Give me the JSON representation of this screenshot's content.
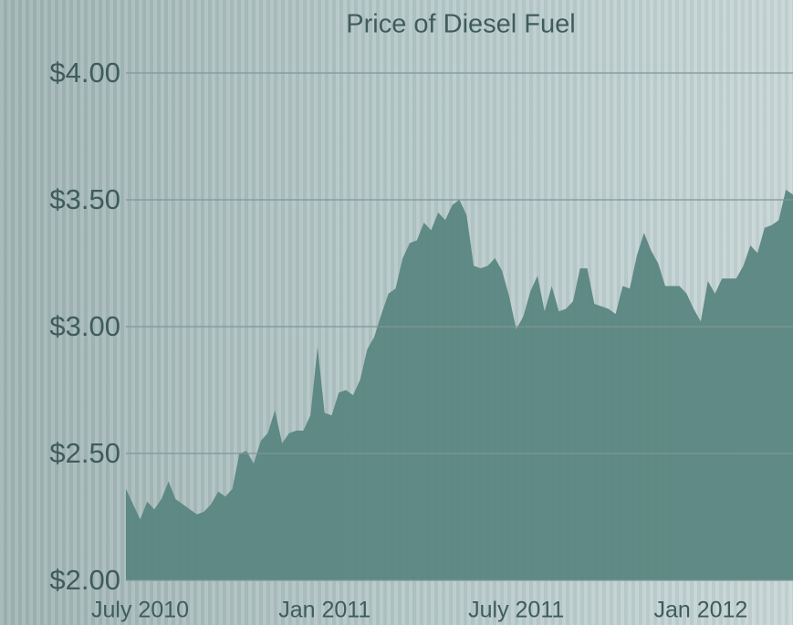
{
  "chart_data": {
    "type": "area",
    "title": "Price of Diesel Fuel",
    "categories": [
      null,
      null,
      "July 2010",
      null,
      null,
      null,
      null,
      null,
      null,
      null,
      null,
      null,
      null,
      null,
      null,
      null,
      null,
      null,
      null,
      null,
      null,
      null,
      null,
      null,
      null,
      null,
      null,
      null,
      "Jan 2011",
      null,
      null,
      null,
      null,
      null,
      null,
      null,
      null,
      null,
      null,
      null,
      null,
      null,
      null,
      null,
      null,
      null,
      null,
      null,
      null,
      null,
      null,
      null,
      null,
      null,
      null,
      "July 2011",
      null,
      null,
      null,
      null,
      null,
      null,
      null,
      null,
      null,
      null,
      null,
      null,
      null,
      null,
      null,
      null,
      null,
      null,
      null,
      null,
      null,
      null,
      null,
      null,
      null,
      "Jan 2012",
      null,
      null,
      null,
      null,
      null,
      null,
      null,
      null,
      null,
      null,
      null,
      null,
      null
    ],
    "values": [
      2.36,
      2.3,
      2.24,
      2.31,
      2.28,
      2.32,
      2.39,
      2.32,
      2.3,
      2.28,
      2.26,
      2.27,
      2.3,
      2.35,
      2.33,
      2.36,
      2.5,
      2.51,
      2.46,
      2.55,
      2.58,
      2.67,
      2.54,
      2.58,
      2.59,
      2.59,
      2.65,
      2.92,
      2.66,
      2.65,
      2.74,
      2.75,
      2.73,
      2.79,
      2.91,
      2.96,
      3.05,
      3.13,
      3.15,
      3.27,
      3.33,
      3.34,
      3.41,
      3.38,
      3.45,
      3.42,
      3.48,
      3.5,
      3.44,
      3.24,
      3.23,
      3.24,
      3.27,
      3.22,
      3.12,
      2.99,
      3.04,
      3.14,
      3.2,
      3.06,
      3.16,
      3.06,
      3.07,
      3.1,
      3.23,
      3.23,
      3.09,
      3.08,
      3.07,
      3.05,
      3.16,
      3.15,
      3.28,
      3.37,
      3.3,
      3.25,
      3.16,
      3.16,
      3.16,
      3.13,
      3.07,
      3.02,
      3.18,
      3.13,
      3.19,
      3.19,
      3.19,
      3.24,
      3.32,
      3.29,
      3.39,
      3.4,
      3.42,
      3.54,
      3.52
    ],
    "color": "#5a8681",
    "ylim": [
      2,
      4
    ],
    "yticks": [
      {
        "value": 2,
        "label": "$2.00"
      },
      {
        "value": 2.5,
        "label": "$2.50"
      },
      {
        "value": 3,
        "label": "$3.00"
      },
      {
        "value": 3.5,
        "label": "$3.50"
      },
      {
        "value": 4,
        "label": "$4.00"
      }
    ],
    "grid": true
  }
}
